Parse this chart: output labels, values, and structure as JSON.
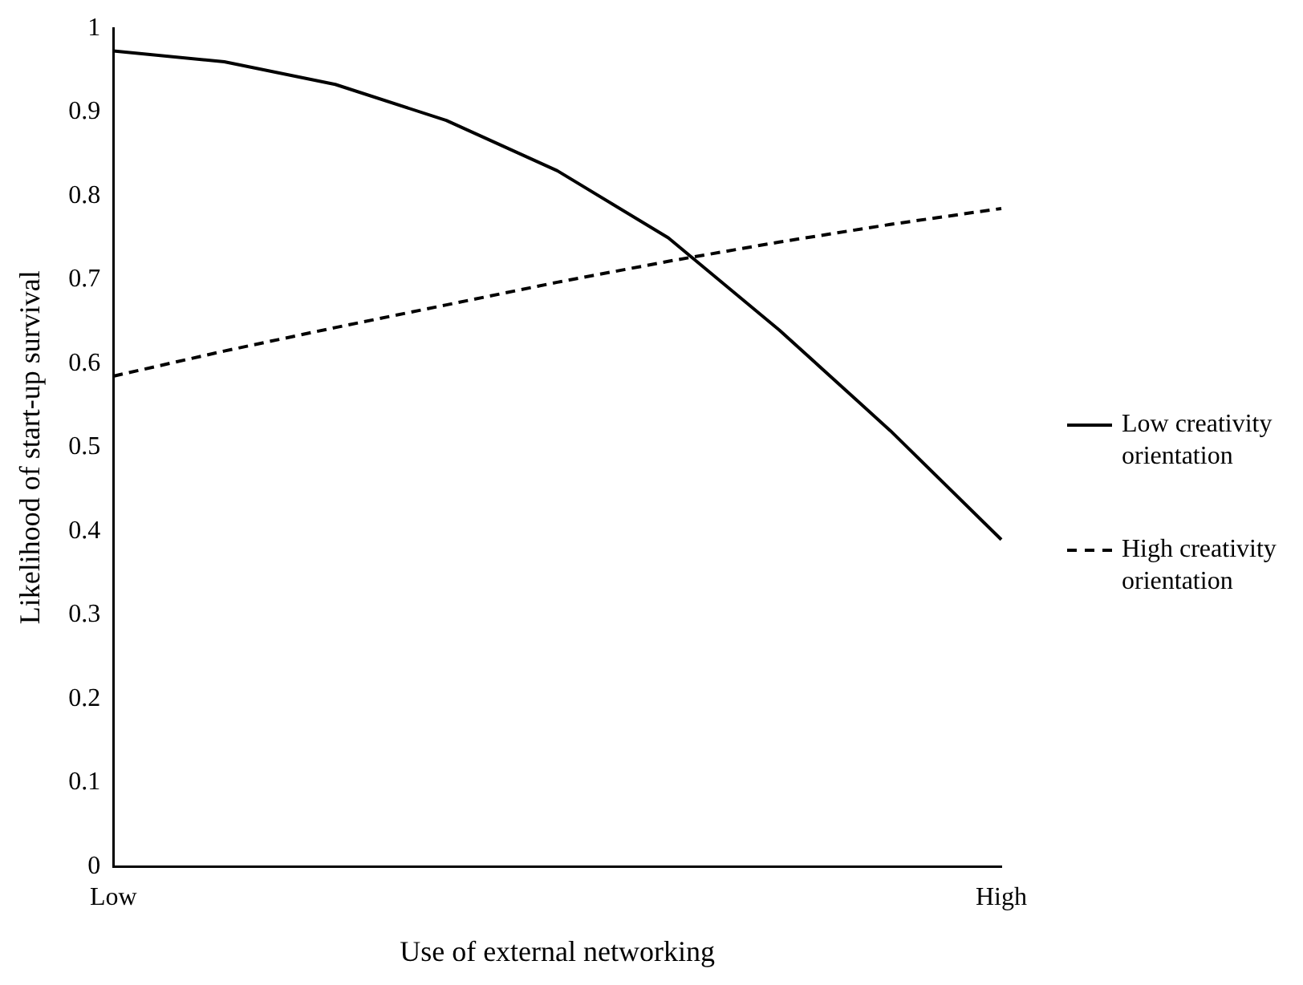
{
  "chart_data": {
    "type": "line",
    "xlabel": "Use of external networking",
    "ylabel": "Likelihood of start-up survival",
    "categories": [
      "Low",
      null,
      null,
      null,
      null,
      null,
      null,
      null,
      "High"
    ],
    "ylim": [
      0,
      1
    ],
    "yticks": [
      0,
      0.1,
      0.2,
      0.3,
      0.4,
      0.5,
      0.6,
      0.7,
      0.8,
      0.9,
      1
    ],
    "grid": false,
    "legend": "right",
    "marker": "none",
    "series": [
      {
        "name": "Low creativity orientation",
        "color": "#000000",
        "line_style": "solid",
        "values": [
          0.973,
          0.96,
          0.933,
          0.89,
          0.83,
          0.75,
          0.64,
          0.52,
          0.39
        ]
      },
      {
        "name": "High creativity orientation",
        "color": "#000000",
        "line_style": "dashed",
        "values": [
          0.585,
          0.615,
          0.643,
          0.67,
          0.697,
          0.722,
          0.745,
          0.766,
          0.785
        ]
      }
    ]
  }
}
